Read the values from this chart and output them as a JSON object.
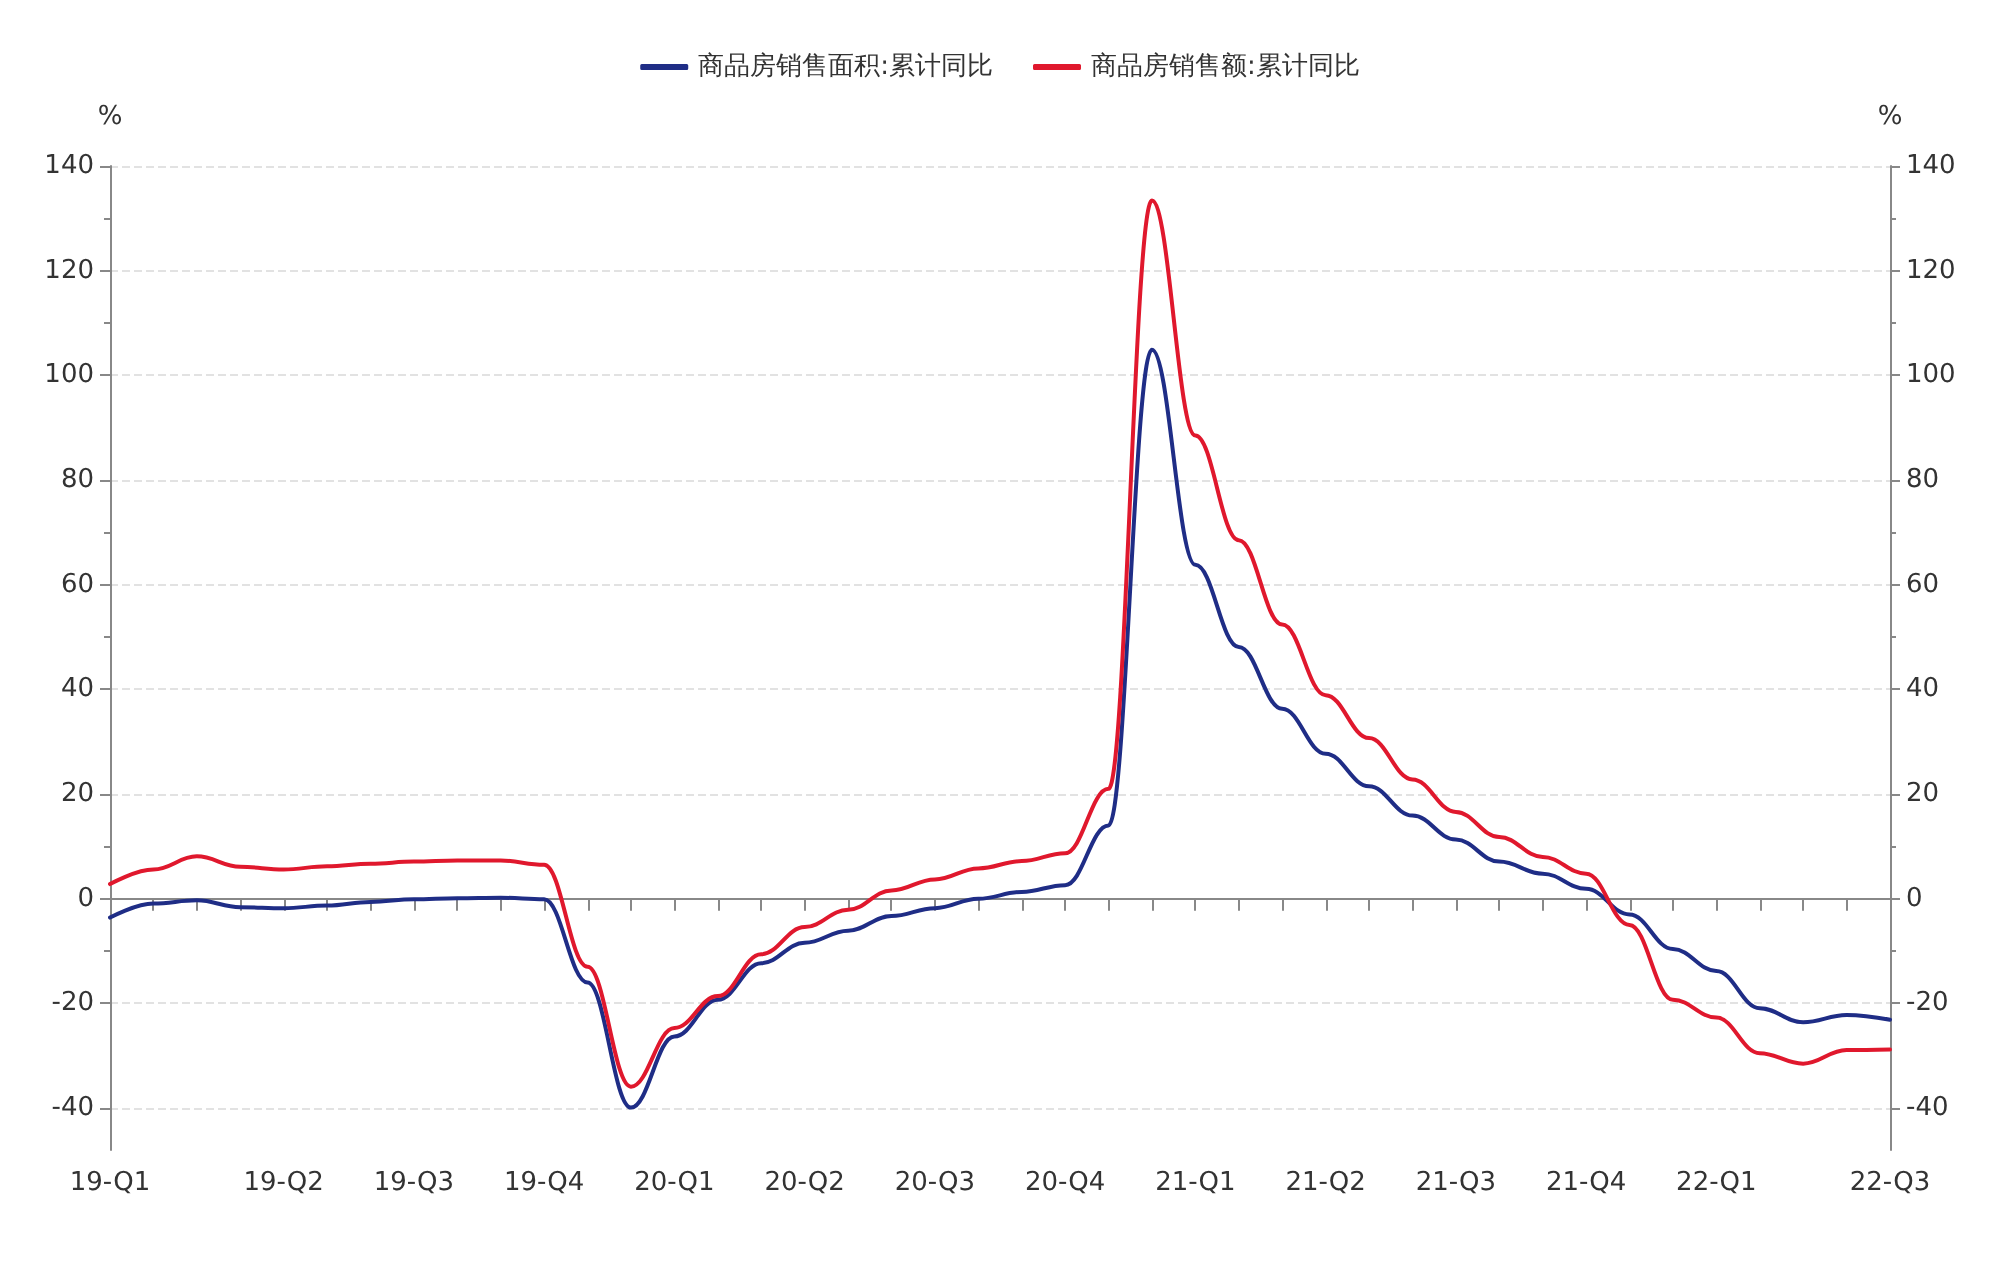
{
  "chart_data": {
    "type": "line",
    "ylabel": "%",
    "y2label": "%",
    "categories": [
      "19-Q1",
      null,
      null,
      null,
      "19-Q2",
      null,
      null,
      "19-Q3",
      null,
      null,
      "19-Q4",
      null,
      null,
      "20-Q1",
      null,
      null,
      "20-Q2",
      null,
      null,
      "20-Q3",
      null,
      null,
      "20-Q4",
      null,
      null,
      "21-Q1",
      null,
      null,
      "21-Q2",
      null,
      null,
      "21-Q3",
      null,
      null,
      "21-Q4",
      null,
      null,
      "22-Q1",
      null,
      null,
      null,
      "22-Q3"
    ],
    "series": [
      {
        "name": "商品房销售面积:累计同比",
        "color": "#1f2d86",
        "values": [
          -3.6,
          -0.9,
          -0.3,
          -1.6,
          -1.8,
          -1.3,
          -0.6,
          -0.1,
          0.1,
          0.2,
          -0.1,
          -16,
          -39.9,
          -26.3,
          -19.3,
          -12.3,
          -8.4,
          -6.1,
          -3.3,
          -1.8,
          0,
          1.3,
          2.6,
          14,
          104.9,
          63.8,
          48.1,
          36.3,
          27.7,
          21.5,
          15.9,
          11.3,
          7.1,
          4.8,
          1.9,
          -3,
          -9.6,
          -13.8,
          -20.9,
          -23.6,
          -22.2,
          -23.1
        ]
      },
      {
        "name": "商品房销售额:累计同比",
        "color": "#e0182d",
        "values": [
          2.8,
          5.6,
          8.1,
          6.1,
          5.6,
          6.2,
          6.7,
          7.1,
          7.3,
          7.3,
          6.5,
          -13,
          -35.9,
          -24.7,
          -18.6,
          -10.6,
          -5.4,
          -2.1,
          1.6,
          3.7,
          5.8,
          7.2,
          8.7,
          21,
          133.4,
          88.5,
          68.5,
          52.4,
          38.9,
          30.7,
          22.8,
          16.6,
          11.8,
          8.0,
          4.8,
          -5,
          -19.3,
          -22.7,
          -29.5,
          -31.5,
          -28.9,
          -28.8
        ]
      }
    ],
    "ylim": [
      -48,
      140
    ],
    "yticks": [
      -40,
      -20,
      0,
      20,
      40,
      60,
      80,
      100,
      120,
      140
    ],
    "y2lim": [
      -48,
      140
    ],
    "y2ticks": [
      -40,
      -20,
      0,
      20,
      40,
      60,
      80,
      100,
      120,
      140
    ],
    "grid": "y",
    "legend": "top",
    "marker": "none",
    "line_style": "solid"
  }
}
